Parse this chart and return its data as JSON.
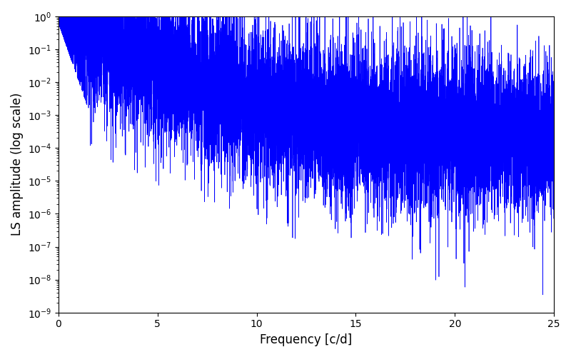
{
  "title": "",
  "xlabel": "Frequency [c/d]",
  "ylabel": "LS amplitude (log scale)",
  "xlim": [
    0,
    25
  ],
  "ylim_log": [
    -9,
    0
  ],
  "line_color": "#0000ff",
  "line_width": 0.5,
  "background_color": "#ffffff",
  "figsize": [
    8.0,
    5.0
  ],
  "dpi": 100,
  "yscale": "log",
  "seed": 42,
  "n_points": 10000,
  "freq_max": 25.0
}
